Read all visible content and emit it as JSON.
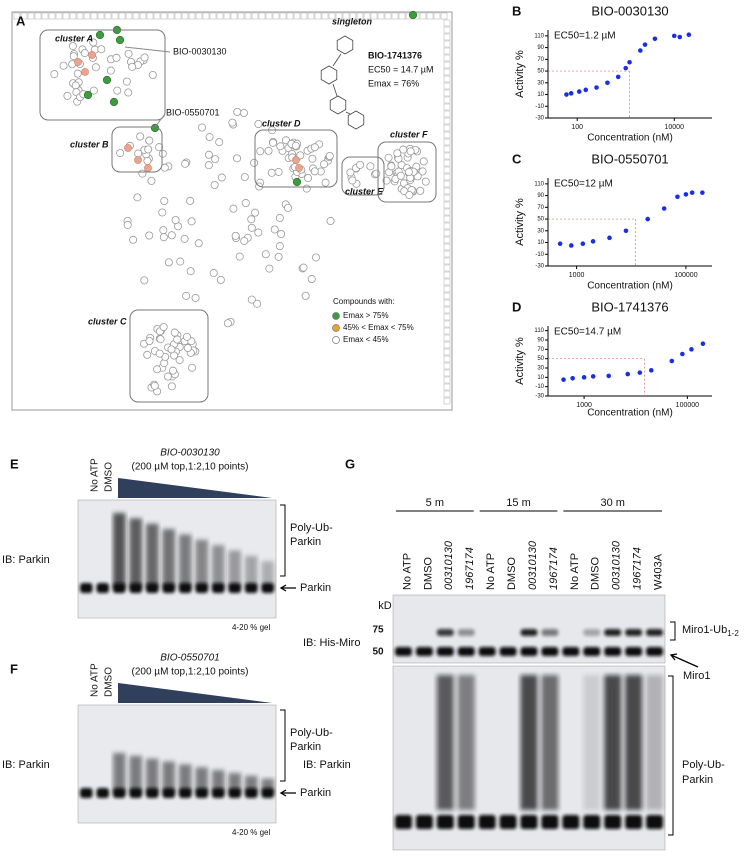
{
  "panel_a": {
    "letter": "A",
    "clusters": [
      "cluster A",
      "cluster B",
      "cluster C",
      "cluster D",
      "cluster E",
      "cluster F"
    ],
    "singleton": "singleton",
    "callouts": [
      "BIO-0030130",
      "BIO-0550701"
    ],
    "compound": {
      "id": "BIO-1741376",
      "ec50": "EC50 = 14.7 µM",
      "emax": "Emax = 76%"
    },
    "legend": {
      "title": "Compounds with:",
      "items": [
        {
          "label": "Emax > 75%",
          "color": "#3e9b3e"
        },
        {
          "label": "45% < Emax < 75%",
          "color": "#e8a430"
        },
        {
          "label": "Emax < 45%",
          "color": "#ffffff"
        }
      ]
    }
  },
  "chart_data": [
    {
      "type": "scatter",
      "letter": "B",
      "title": "BIO-0030130",
      "annotation": "EC50=1.2 µM",
      "xlabel": "Concentration (nM)",
      "ylabel": "Activity %",
      "log_x": true,
      "color": "#1a2ee6",
      "x": [
        60,
        75,
        110,
        150,
        250,
        420,
        700,
        1000,
        1200,
        2000,
        2500,
        4000,
        10000,
        13000,
        20000
      ],
      "values": [
        10,
        12,
        15,
        18,
        22,
        30,
        40,
        55,
        65,
        85,
        95,
        105,
        110,
        108,
        112
      ],
      "ec50_line": {
        "x": 1200,
        "y": 50
      },
      "xlim": [
        25,
        60000
      ],
      "ylim": [
        -30,
        120
      ],
      "xticks": [
        100,
        10000
      ],
      "yticks": [
        -30,
        -10,
        10,
        30,
        50,
        70,
        90,
        110
      ]
    },
    {
      "type": "scatter",
      "letter": "C",
      "title": "BIO-0550701",
      "annotation": "EC50=12 µM",
      "xlabel": "Concentration (nM)",
      "ylabel": "Activity %",
      "log_x": true,
      "color": "#1a2ee6",
      "x": [
        500,
        800,
        1300,
        2000,
        4000,
        8000,
        20000,
        40000,
        70000,
        100000,
        130000,
        200000
      ],
      "values": [
        8,
        5,
        8,
        12,
        18,
        30,
        50,
        68,
        88,
        92,
        95,
        95
      ],
      "ec50_line": {
        "x": 12000,
        "y": 50
      },
      "xlim": [
        300,
        300000
      ],
      "ylim": [
        -30,
        120
      ],
      "xticks": [
        1000,
        100000
      ],
      "yticks": [
        -30,
        -10,
        10,
        30,
        50,
        70,
        90,
        110
      ]
    },
    {
      "type": "scatter",
      "letter": "D",
      "title": "BIO-1741376",
      "annotation": "EC50=14.7 µM",
      "xlabel": "Concentration (nM)",
      "ylabel": "Activity %",
      "log_x": true,
      "color": "#1a2ee6",
      "x": [
        400,
        600,
        1000,
        1500,
        3000,
        7000,
        12000,
        20000,
        50000,
        80000,
        120000,
        200000
      ],
      "values": [
        5,
        8,
        10,
        12,
        13,
        17,
        20,
        25,
        45,
        60,
        70,
        82
      ],
      "ec50_line": {
        "x": 14700,
        "y": 50
      },
      "xlim": [
        200,
        300000
      ],
      "ylim": [
        -30,
        120
      ],
      "xticks": [
        1000,
        100000
      ],
      "yticks": [
        -30,
        -10,
        10,
        30,
        50,
        70,
        90,
        110
      ]
    }
  ],
  "panel_e": {
    "letter": "E",
    "lanes": [
      "No ATP",
      "DMSO"
    ],
    "compound": "BIO-0030130",
    "dilution": "(200 µM top,1:2,10 points)",
    "ib": "IB: Parkin",
    "smear": [
      "Poly-Ub-",
      "Parkin"
    ],
    "band": "Parkin",
    "gel": "4-20 % gel"
  },
  "panel_f": {
    "letter": "F",
    "lanes": [
      "No ATP",
      "DMSO"
    ],
    "compound": "BIO-0550701",
    "dilution": "(200 µM top,1:2,10 points)",
    "ib": "IB: Parkin",
    "smear": [
      "Poly-Ub-",
      "Parkin"
    ],
    "band": "Parkin",
    "gel": "4-20 % gel"
  },
  "panel_g": {
    "letter": "G",
    "times": [
      "5 m",
      "15 m",
      "30 m"
    ],
    "lanes": [
      "No ATP",
      "DMSO",
      "00310130",
      "1967174",
      "No ATP",
      "DMSO",
      "00310130",
      "1967174",
      "No ATP",
      "DMSO",
      "00310130",
      "1967174",
      "W403A"
    ],
    "kd": "kD",
    "markers": [
      "75",
      "50"
    ],
    "ib_top": "IB: His-Miro",
    "ub_band": "Miro1-Ub",
    "ub_sub": "1-2",
    "miro": "Miro1",
    "ib_bottom": "IB: Parkin",
    "smear": [
      "Poly-Ub-",
      "Parkin"
    ]
  }
}
